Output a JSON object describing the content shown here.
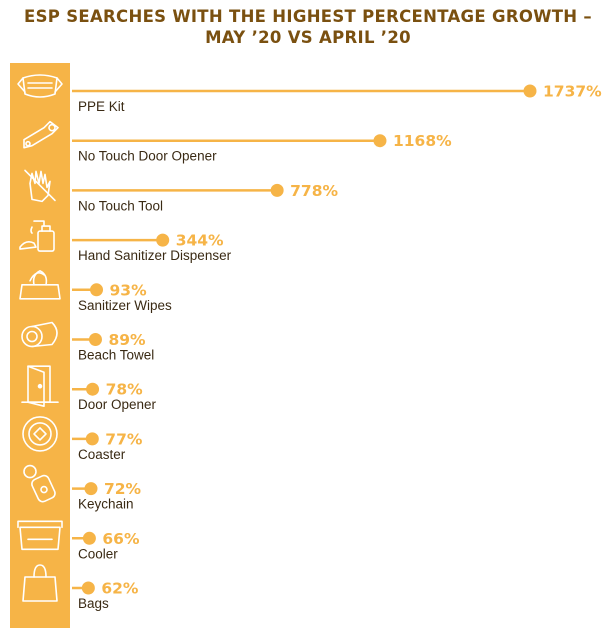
{
  "title_line1": "ESP SEARCHES WITH THE HIGHEST PERCENTAGE GROWTH –",
  "title_line2": "MAY ’20 VS APRIL ’20",
  "colors": {
    "accent": "#f6b447",
    "title": "#7a5010",
    "icon_stroke": "#ffffff",
    "label": "#3a2a14"
  },
  "chart_data": {
    "type": "bar",
    "title": "ESP SEARCHES WITH THE HIGHEST PERCENTAGE GROWTH – MAY ’20 VS APRIL ’20",
    "categories": [
      "PPE Kit",
      "No Touch Door Opener",
      "No Touch Tool",
      "Hand Sanitizer Dispenser",
      "Sanitizer Wipes",
      "Beach Towel",
      "Door Opener",
      "Coaster",
      "Keychain",
      "Cooler",
      "Bags"
    ],
    "values": [
      1737,
      1168,
      778,
      344,
      93,
      89,
      78,
      77,
      72,
      66,
      62
    ],
    "value_labels": [
      "1737%",
      "1168%",
      "778%",
      "344%",
      "93%",
      "89%",
      "78%",
      "77%",
      "72%",
      "66%",
      "62%"
    ],
    "icons": [
      "face-mask-icon",
      "door-opener-tool-icon",
      "no-touch-hand-icon",
      "sanitizer-dispenser-icon",
      "wipes-pack-icon",
      "rolled-towel-icon",
      "door-icon",
      "coaster-icon",
      "keychain-icon",
      "cooler-icon",
      "shopping-bag-icon"
    ],
    "orientation": "horizontal",
    "xlim": [
      0,
      1737
    ],
    "grid": false,
    "legend": "none"
  }
}
